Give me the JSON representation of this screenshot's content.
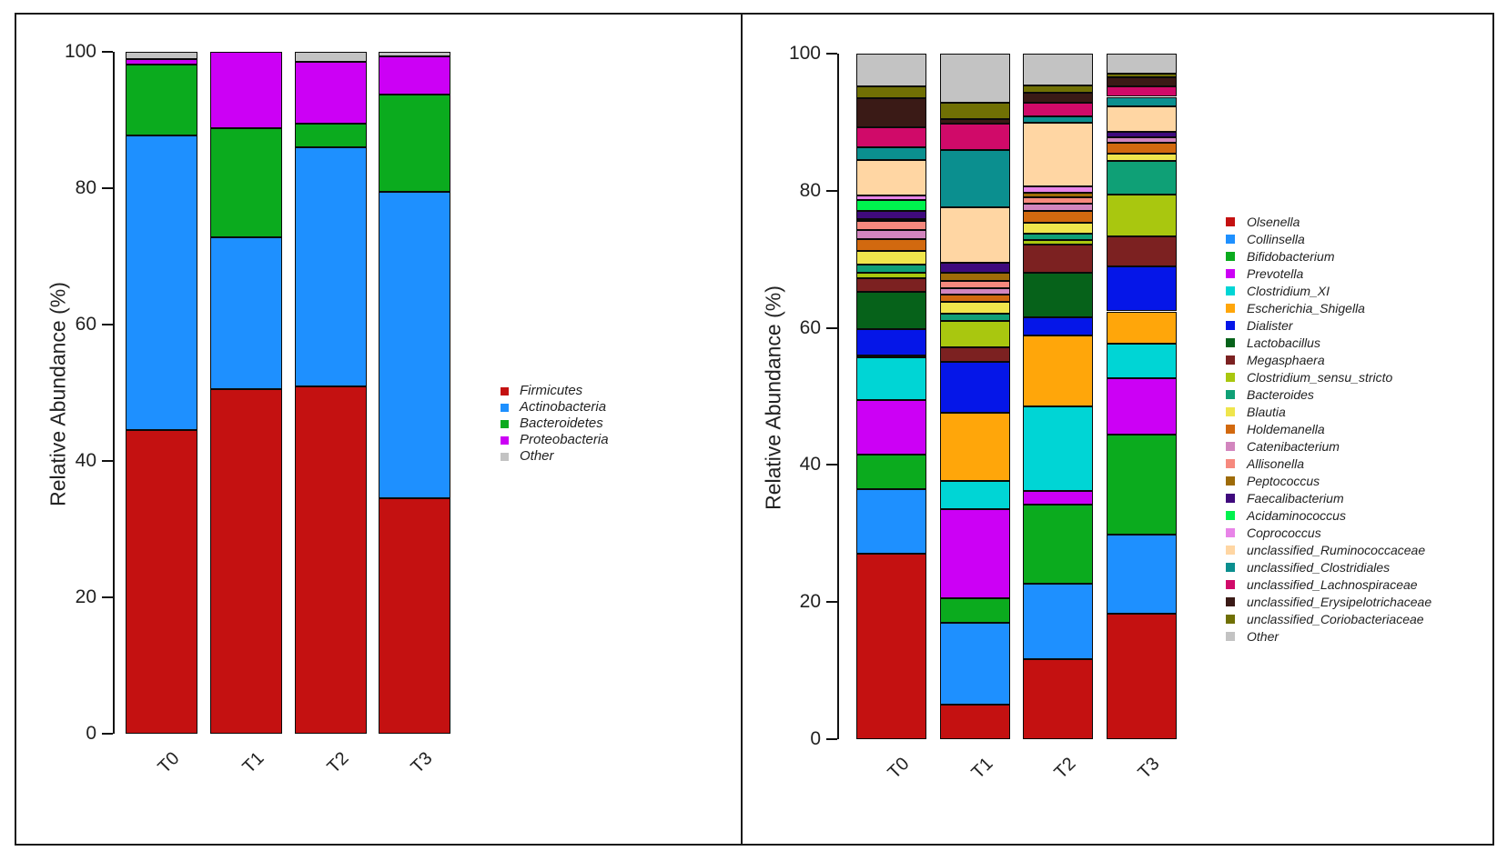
{
  "figure": {
    "background": "#FFFFFF",
    "border_color": "#1A1A1A"
  },
  "chart_data": [
    {
      "id": "phylum",
      "type": "bar",
      "stacked": true,
      "title": "",
      "xlabel": "",
      "ylabel": "Relative Abundance (%)",
      "ylim": [
        0,
        100
      ],
      "yticks": [
        0,
        20,
        40,
        60,
        80,
        100
      ],
      "grid": false,
      "legend_position": "right",
      "categories": [
        "T0",
        "T1",
        "T2",
        "T3"
      ],
      "series": [
        {
          "name": "Firmicutes",
          "color": "#C41111",
          "values": [
            44.5,
            50.5,
            51.0,
            34.5
          ]
        },
        {
          "name": "Actinobacteria",
          "color": "#1E90FF",
          "values": [
            43.2,
            22.3,
            35.0,
            45.0
          ]
        },
        {
          "name": "Bacteroidetes",
          "color": "#0BAB1E",
          "values": [
            10.5,
            16.0,
            3.5,
            14.3
          ]
        },
        {
          "name": "Proteobacteria",
          "color": "#CC00F5",
          "values": [
            0.8,
            11.2,
            9.0,
            5.5
          ]
        },
        {
          "name": "Other",
          "color": "#C3C3C3",
          "values": [
            1.0,
            0.0,
            1.5,
            0.7
          ]
        }
      ]
    },
    {
      "id": "genus",
      "type": "bar",
      "stacked": true,
      "title": "",
      "xlabel": "",
      "ylabel": "Relative Abundance (%)",
      "ylim": [
        0,
        100
      ],
      "yticks": [
        0,
        20,
        40,
        60,
        80,
        100
      ],
      "grid": false,
      "legend_position": "right",
      "categories": [
        "T0",
        "T1",
        "T2",
        "T3"
      ],
      "series": [
        {
          "name": "Olsenella",
          "color": "#C41111",
          "values": [
            27.0,
            5.0,
            11.7,
            18.3
          ]
        },
        {
          "name": "Collinsella",
          "color": "#1E90FF",
          "values": [
            9.5,
            12.0,
            11.0,
            11.5
          ]
        },
        {
          "name": "Bifidobacterium",
          "color": "#0BAB1E",
          "values": [
            5.0,
            3.5,
            11.5,
            14.6
          ]
        },
        {
          "name": "Prevotella",
          "color": "#CC00F5",
          "values": [
            8.0,
            13.0,
            2.0,
            8.3
          ]
        },
        {
          "name": "Clostridium_XI",
          "color": "#00D5D5",
          "values": [
            6.2,
            4.1,
            12.3,
            5.0
          ]
        },
        {
          "name": "Escherichia_Shigella",
          "color": "#FFA60A",
          "values": [
            0.3,
            10.0,
            10.4,
            4.7
          ]
        },
        {
          "name": "Dialister",
          "color": "#0516E8",
          "values": [
            3.8,
            7.4,
            2.7,
            6.5
          ]
        },
        {
          "name": "Lactobacillus",
          "color": "#06621A",
          "values": [
            5.5,
            0.0,
            6.5,
            0.0
          ]
        },
        {
          "name": "Megasphaera",
          "color": "#7C2121",
          "values": [
            1.9,
            2.2,
            4.0,
            4.5
          ]
        },
        {
          "name": "Clostridium_sensu_stricto",
          "color": "#A9C70F",
          "values": [
            0.8,
            3.8,
            0.7,
            6.1
          ]
        },
        {
          "name": "Bacteroides",
          "color": "#0FA076",
          "values": [
            1.2,
            1.1,
            0.9,
            4.8
          ]
        },
        {
          "name": "Blautia",
          "color": "#EFE54C",
          "values": [
            2.0,
            1.7,
            1.6,
            1.1
          ]
        },
        {
          "name": "Holdemanella",
          "color": "#D2690F",
          "values": [
            1.8,
            1.0,
            1.8,
            1.6
          ]
        },
        {
          "name": "Catenibacterium",
          "color": "#D285BE",
          "values": [
            1.3,
            1.0,
            1.0,
            0.8
          ]
        },
        {
          "name": "Allisonella",
          "color": "#F6897E",
          "values": [
            1.3,
            1.0,
            0.9,
            0.0
          ]
        },
        {
          "name": "Peptococcus",
          "color": "#9E6B08",
          "values": [
            0.3,
            1.2,
            0.7,
            0.0
          ]
        },
        {
          "name": "Faecalibacterium",
          "color": "#3F0A7D",
          "values": [
            1.1,
            1.5,
            0.0,
            0.8
          ]
        },
        {
          "name": "Acidaminococcus",
          "color": "#00F24E",
          "values": [
            1.7,
            0.0,
            0.0,
            0.0
          ]
        },
        {
          "name": "Coprococcus",
          "color": "#E884E8",
          "values": [
            0.6,
            0.0,
            1.0,
            0.0
          ]
        },
        {
          "name": "unclassified_Ruminococcaceae",
          "color": "#FFD6A3",
          "values": [
            5.2,
            8.1,
            9.2,
            3.7
          ]
        },
        {
          "name": "unclassified_Clostridiales",
          "color": "#0B8F8F",
          "values": [
            1.8,
            8.4,
            0.9,
            1.4
          ]
        },
        {
          "name": "unclassified_Lachnospiraceae",
          "color": "#D00A69",
          "values": [
            3.0,
            3.8,
            2.0,
            1.5
          ]
        },
        {
          "name": "unclassified_Erysipelotrichaceae",
          "color": "#3A1A16",
          "values": [
            4.2,
            0.6,
            1.5,
            1.3
          ]
        },
        {
          "name": "unclassified_Coriobacteriaceae",
          "color": "#707004",
          "values": [
            1.7,
            2.4,
            1.1,
            0.6
          ]
        },
        {
          "name": "Other",
          "color": "#C3C3C3",
          "values": [
            4.8,
            7.2,
            4.6,
            2.9
          ]
        }
      ]
    }
  ]
}
